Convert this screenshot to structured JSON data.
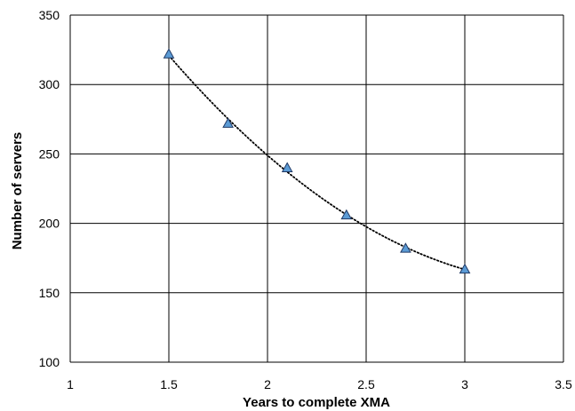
{
  "chart_data": {
    "type": "scatter",
    "title": "",
    "xlabel": "Years to complete XMA",
    "ylabel": "Number of servers",
    "xlim": [
      1,
      3.5
    ],
    "ylim": [
      100,
      350
    ],
    "x_ticks": [
      1,
      1.5,
      2,
      2.5,
      3,
      3.5
    ],
    "y_ticks": [
      100,
      150,
      200,
      250,
      300,
      350
    ],
    "x_tick_labels": [
      "1",
      "1.5",
      "2",
      "2.5",
      "3",
      "3.5"
    ],
    "y_tick_labels": [
      "100",
      "150",
      "200",
      "250",
      "300",
      "350"
    ],
    "grid": true,
    "legend": false,
    "trendline": "dotted",
    "marker": "triangle",
    "marker_color": "#5b9bd5",
    "series": [
      {
        "x": [
          1.5,
          1.8,
          2.1,
          2.4,
          2.7,
          3.0
        ],
        "y": [
          322,
          272,
          240,
          206,
          182,
          167
        ]
      }
    ]
  }
}
